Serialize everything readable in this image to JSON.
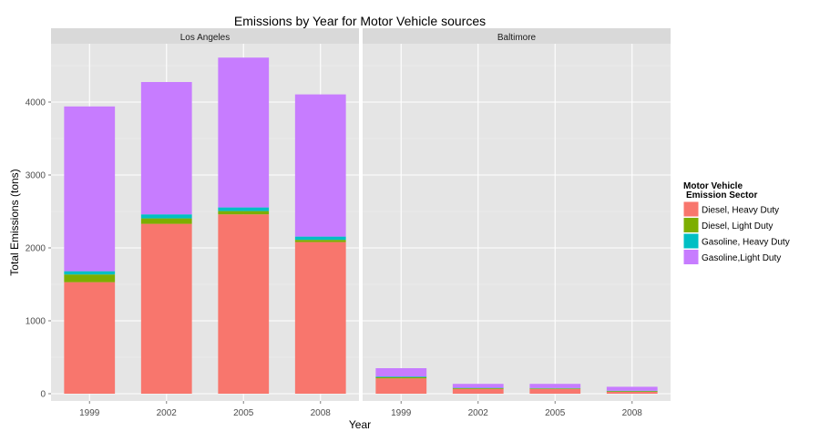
{
  "chart_data": {
    "type": "bar",
    "stacked": true,
    "title": "Emissions by Year for Motor Vehicle sources",
    "xlabel": "Year",
    "ylabel": "Total Emissions (tons)",
    "ylim": [
      -100,
      4800
    ],
    "yticks": [
      0,
      1000,
      2000,
      3000,
      4000
    ],
    "grid": true,
    "legend_position": "right",
    "legend": {
      "title_line1": "Motor Vehicle",
      "title_line2": "Emission Sector"
    },
    "categories": [
      "1999",
      "2002",
      "2005",
      "2008"
    ],
    "series": [
      {
        "name": "Diesel, Heavy Duty",
        "color": "#F8766D"
      },
      {
        "name": "Diesel, Light Duty",
        "color": "#7CAE00"
      },
      {
        "name": "Gasoline, Heavy Duty",
        "color": "#00BFC4"
      },
      {
        "name": "Gasoline,Light Duty",
        "color": "#C77CFF"
      }
    ],
    "panels": [
      {
        "label": "Los Angeles",
        "values": [
          [
            1530,
            105,
            45,
            2260
          ],
          [
            2330,
            75,
            55,
            1815
          ],
          [
            2460,
            45,
            50,
            2055
          ],
          [
            2080,
            30,
            45,
            1950
          ]
        ]
      },
      {
        "label": "Baltimore",
        "values": [
          [
            210,
            15,
            10,
            115
          ],
          [
            65,
            10,
            5,
            55
          ],
          [
            65,
            8,
            5,
            57
          ],
          [
            25,
            10,
            5,
            55
          ]
        ]
      }
    ]
  }
}
